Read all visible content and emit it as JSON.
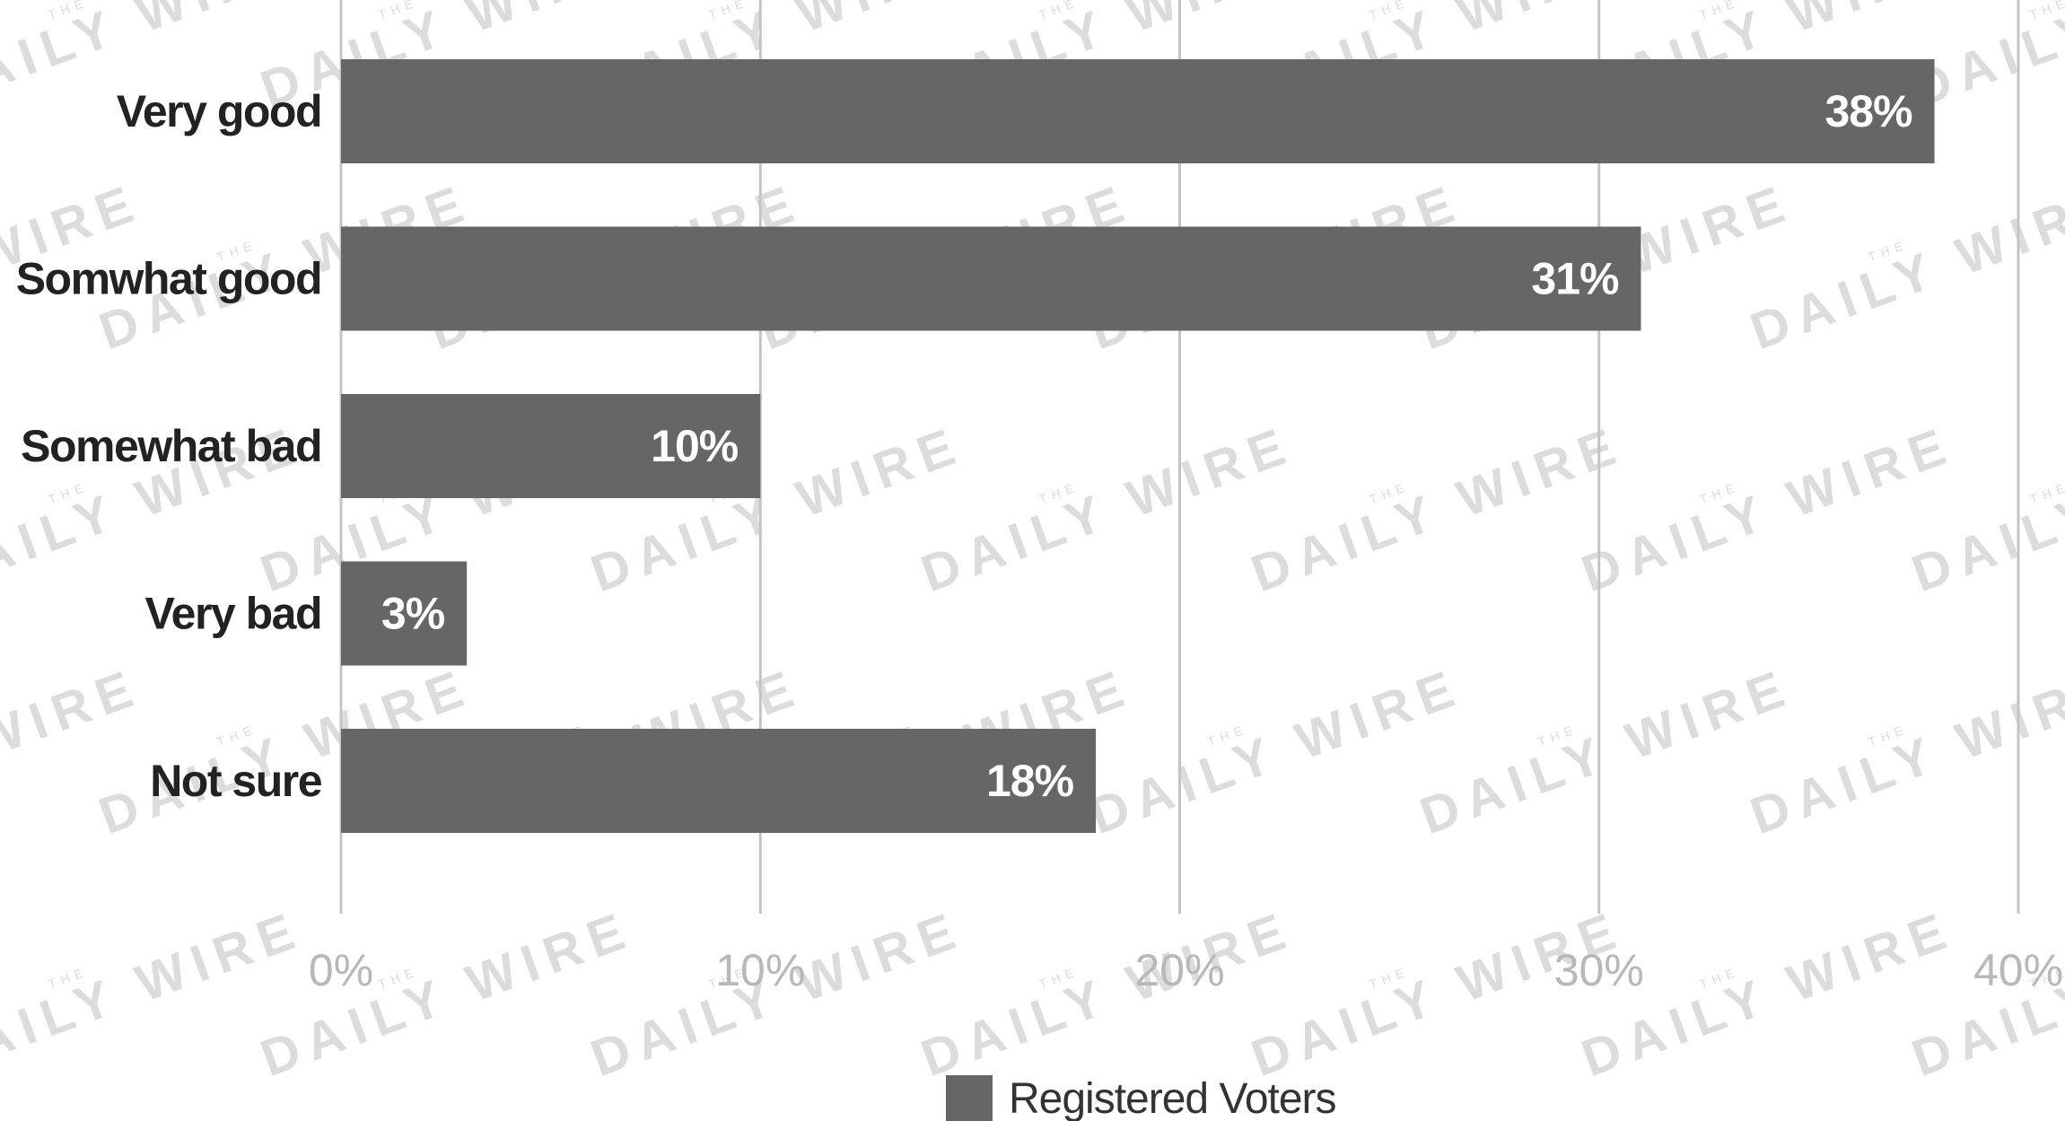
{
  "watermark": {
    "text": "DAILY WIRE",
    "prefix": "THE"
  },
  "chart_data": {
    "type": "bar",
    "orientation": "horizontal",
    "categories": [
      "Very good",
      "Somwhat good",
      "Somewhat bad",
      "Very bad",
      "Not sure"
    ],
    "series": [
      {
        "name": "Registered Voters",
        "values": [
          38,
          31,
          10,
          3,
          18
        ],
        "labels": [
          "38%",
          "31%",
          "10%",
          "3%",
          "18%"
        ],
        "color": "#666666"
      }
    ],
    "x_ticks": [
      "0%",
      "10%",
      "20%",
      "30%",
      "40%"
    ],
    "xlim": [
      0,
      40
    ],
    "grid": true,
    "legend_position": "bottom-center",
    "colors": {
      "bar": "#666666",
      "grid": "#c4c4c4",
      "tick_text": "#b8b8b8",
      "category_text": "#222222",
      "value_text": "#ffffff"
    }
  }
}
